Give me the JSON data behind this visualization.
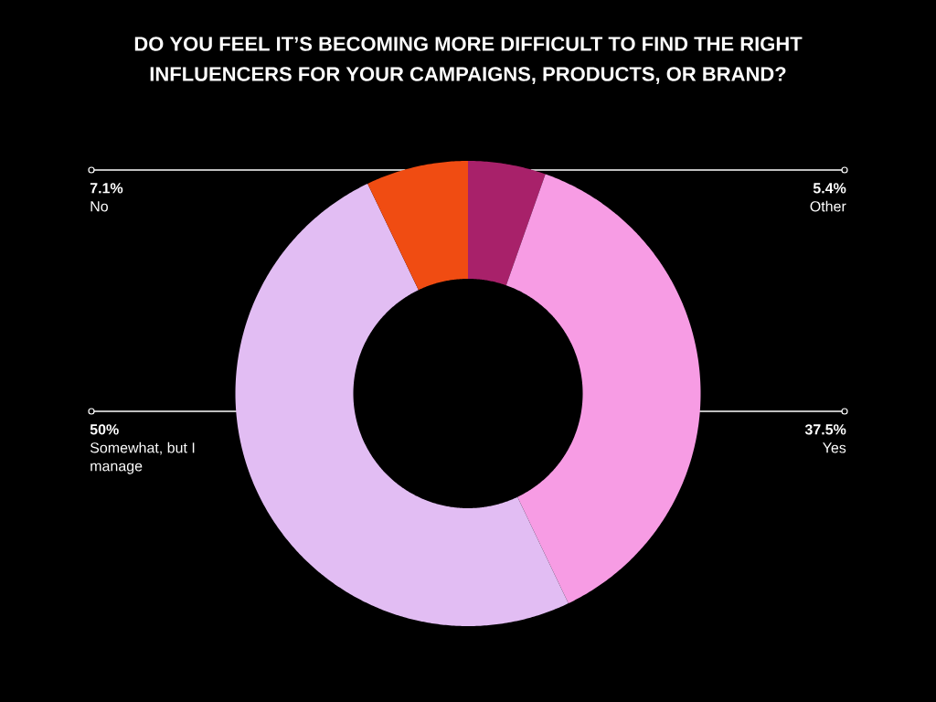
{
  "chart_data": {
    "type": "donut",
    "title": "DO YOU FEEL IT’S BECOMING MORE DIFFICULT TO FIND THE RIGHT INFLUENCERS FOR YOUR CAMPAIGNS, PRODUCTS, OR BRAND?",
    "categories": [
      "Other",
      "Yes",
      "Somewhat, but I manage",
      "No"
    ],
    "values": [
      5.4,
      37.5,
      50,
      7.1
    ],
    "value_labels": [
      "5.4%",
      "37.5%",
      "50%",
      "7.1%"
    ],
    "colors": [
      "#a8216a",
      "#f79ce4",
      "#e2bdf3",
      "#f04c12"
    ]
  }
}
